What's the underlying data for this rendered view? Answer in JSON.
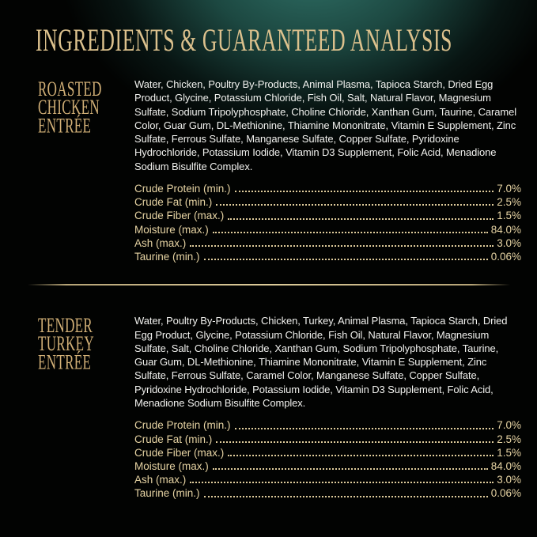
{
  "page": {
    "title": "INGREDIENTS & GUARANTEED ANALYSIS",
    "colors": {
      "background_glow_teal": "#2f7169",
      "background_base": "#020302",
      "title_gold": "#dcc18d",
      "heading_gold": "#d2b077",
      "analysis_gold": "#e6d3a3",
      "ingredients_white": "#f1f1ee",
      "divider_gold": "#dccb99"
    }
  },
  "sections": [
    {
      "name_lines": [
        "ROASTED",
        "CHICKEN",
        "ENTRÉE"
      ],
      "ingredients": "Water, Chicken, Poultry By-Products, Animal Plasma, Tapioca Starch, Dried Egg Product, Glycine, Potassium Chloride, Fish Oil, Salt, Natural Flavor, Magnesium Sulfate, Sodium Tripolyphosphate, Choline Chloride, Xanthan Gum, Taurine, Caramel Color, Guar Gum, DL-Methionine, Thiamine Mononitrate, Vitamin E Supplement, Zinc Sulfate, Ferrous Sulfate, Manganese Sulfate, Copper Sulfate, Pyridoxine Hydrochloride, Potassium Iodide, Vitamin D3 Supplement, Folic Acid, Menadione Sodium Bisulfite Complex.",
      "analysis": [
        {
          "label": "Crude Protein (min.)",
          "value": "7.0%"
        },
        {
          "label": "Crude Fat (min.)",
          "value": "2.5%"
        },
        {
          "label": "Crude Fiber (max.)",
          "value": "1.5%"
        },
        {
          "label": "Moisture (max.)",
          "value": "84.0%"
        },
        {
          "label": "Ash (max.)",
          "value": "3.0%"
        },
        {
          "label": "Taurine (min.)",
          "value": "0.06%"
        }
      ]
    },
    {
      "name_lines": [
        "TENDER",
        "TURKEY",
        "ENTRÉE"
      ],
      "ingredients": "Water, Poultry By-Products, Chicken, Turkey, Animal Plasma, Tapioca Starch, Dried Egg Product, Glycine, Potassium Chloride, Fish Oil, Natural Flavor, Magnesium Sulfate, Salt, Choline Chloride, Xanthan Gum, Sodium Tripolyphosphate, Taurine, Guar Gum, DL-Methionine, Thiamine Mononitrate, Vitamin E Supplement, Zinc Sulfate, Ferrous Sulfate, Caramel Color, Manganese Sulfate, Copper Sulfate, Pyridoxine Hydrochloride, Potassium Iodide, Vitamin D3 Supplement, Folic Acid, Menadione Sodium Bisulfite Complex.",
      "analysis": [
        {
          "label": "Crude Protein (min.)",
          "value": "7.0%"
        },
        {
          "label": "Crude Fat (min.)",
          "value": "2.5%"
        },
        {
          "label": "Crude Fiber (max.)",
          "value": "1.5%"
        },
        {
          "label": "Moisture (max.)",
          "value": "84.0%"
        },
        {
          "label": "Ash (max.)",
          "value": "3.0%"
        },
        {
          "label": "Taurine (min.)",
          "value": "0.06%"
        }
      ]
    }
  ]
}
